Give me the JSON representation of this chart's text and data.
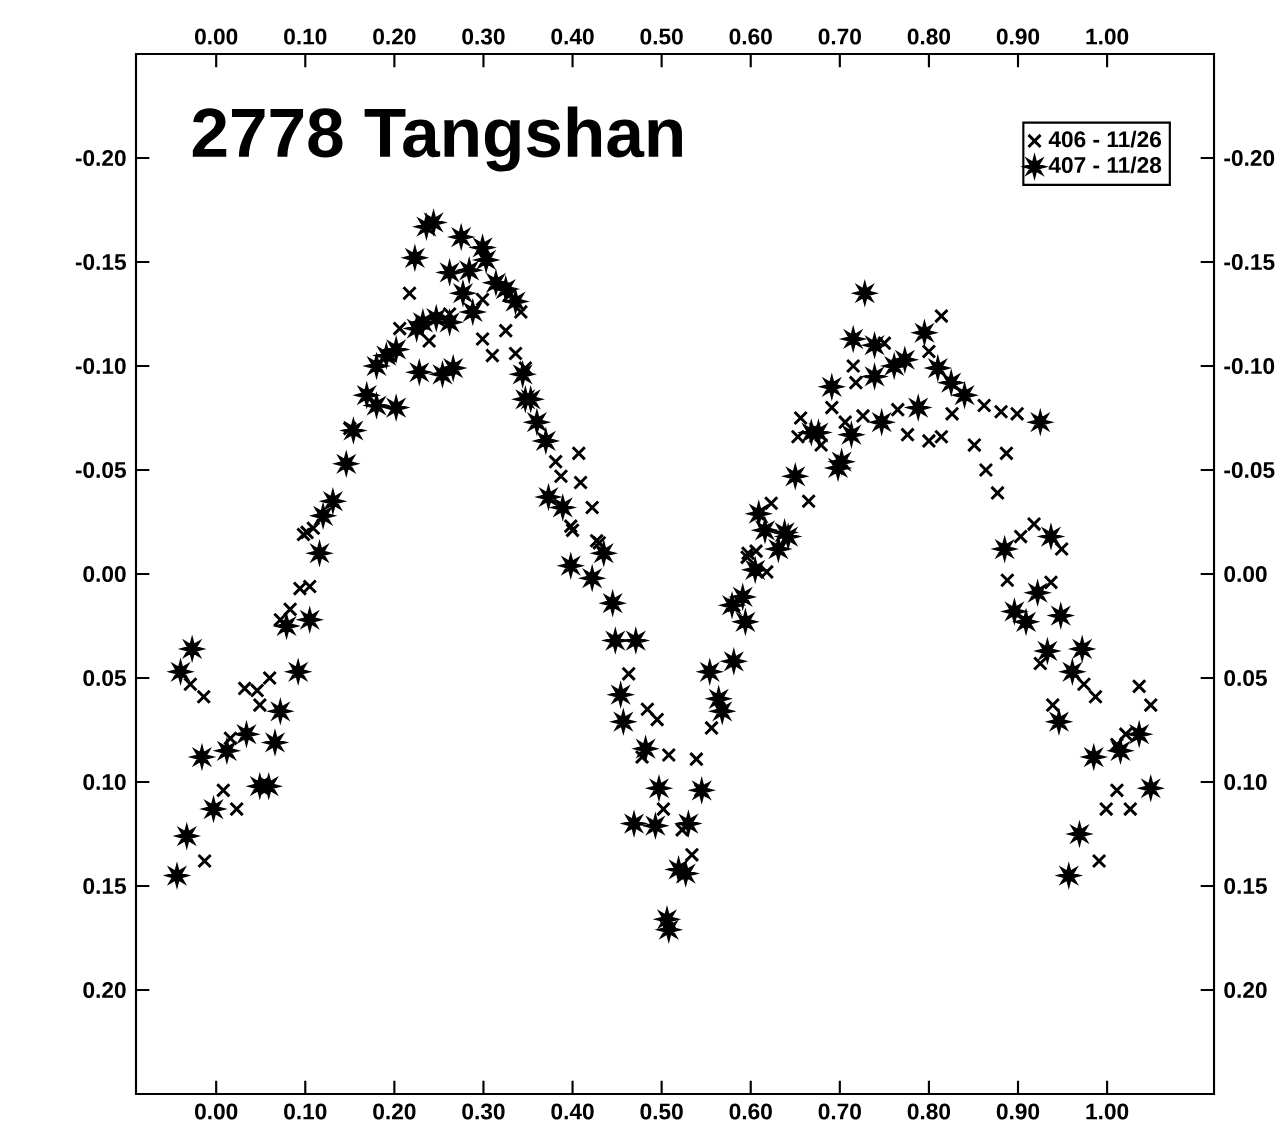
{
  "chart_data": {
    "type": "scatter",
    "title": "2778 Tangshan",
    "xlim": [
      -0.09,
      1.12
    ],
    "ylim": [
      0.25,
      -0.25
    ],
    "xticks": [
      {
        "value": 0,
        "label": "0.00"
      },
      {
        "value": 0.1,
        "label": "0.10"
      },
      {
        "value": 0.2,
        "label": "0.20"
      },
      {
        "value": 0.3,
        "label": "0.30"
      },
      {
        "value": 0.4,
        "label": "0.40"
      },
      {
        "value": 0.5,
        "label": "0.50"
      },
      {
        "value": 0.6,
        "label": "0.60"
      },
      {
        "value": 0.7,
        "label": "0.70"
      },
      {
        "value": 0.8,
        "label": "0.80"
      },
      {
        "value": 0.9,
        "label": "0.90"
      },
      {
        "value": 1.0,
        "label": "1.00"
      }
    ],
    "yticks": [
      {
        "value": -0.2,
        "label": "-0.20"
      },
      {
        "value": -0.15,
        "label": "-0.15"
      },
      {
        "value": -0.1,
        "label": "-0.10"
      },
      {
        "value": -0.05,
        "label": "-0.05"
      },
      {
        "value": 0,
        "label": "0.00"
      },
      {
        "value": 0.05,
        "label": "0.05"
      },
      {
        "value": 0.1,
        "label": "0.10"
      },
      {
        "value": 0.15,
        "label": "0.15"
      },
      {
        "value": 0.2,
        "label": "0.20"
      }
    ],
    "x2lim": [
      -0.09,
      1.12
    ],
    "y2lim": [
      0.25,
      -0.25
    ],
    "x2ticks": [
      {
        "value": 0,
        "label": "0.00"
      },
      {
        "value": 0.1,
        "label": "0.10"
      },
      {
        "value": 0.2,
        "label": "0.20"
      },
      {
        "value": 0.3,
        "label": "0.30"
      },
      {
        "value": 0.4,
        "label": "0.40"
      },
      {
        "value": 0.5,
        "label": "0.50"
      },
      {
        "value": 0.6,
        "label": "0.60"
      },
      {
        "value": 0.7,
        "label": "0.70"
      },
      {
        "value": 0.8,
        "label": "0.80"
      },
      {
        "value": 0.9,
        "label": "0.90"
      },
      {
        "value": 1.0,
        "label": "1.00"
      }
    ],
    "y2ticks": [
      {
        "value": -0.2,
        "label": "-0.20"
      },
      {
        "value": -0.15,
        "label": "-0.15"
      },
      {
        "value": -0.1,
        "label": "-0.10"
      },
      {
        "value": -0.05,
        "label": "-0.05"
      },
      {
        "value": 0,
        "label": "0.00"
      },
      {
        "value": 0.05,
        "label": "0.05"
      },
      {
        "value": 0.1,
        "label": "0.10"
      },
      {
        "value": 0.15,
        "label": "0.15"
      },
      {
        "value": 0.2,
        "label": "0.20"
      }
    ],
    "legend": "top right",
    "grid": false,
    "series": [
      {
        "name": "406 - 11/26",
        "color": "#000000",
        "marker": "cross",
        "x": [
          -0.029,
          -0.014,
          -0.013,
          0.008,
          0.023,
          0.016,
          0.032,
          0.046,
          0.049,
          0.06,
          0.072,
          0.083,
          0.094,
          0.105,
          0.098,
          0.109,
          0.102,
          0.15,
          0.195,
          0.206,
          0.217,
          0.239,
          0.262,
          0.299,
          0.329,
          0.342,
          0.325,
          0.299,
          0.31,
          0.336,
          0.347,
          0.381,
          0.407,
          0.387,
          0.409,
          0.422,
          0.398,
          0.43,
          0.4,
          0.427,
          0.463,
          0.484,
          0.495,
          0.478,
          0.508,
          0.502,
          0.539,
          0.523,
          0.534,
          0.556,
          0.544,
          0.581,
          0.596,
          0.606,
          0.618,
          0.597,
          0.623,
          0.665,
          0.653,
          0.656,
          0.679,
          0.691,
          0.706,
          0.718,
          0.715,
          0.726,
          0.75,
          0.765,
          0.776,
          0.8,
          0.814,
          0.8,
          0.814,
          0.826,
          0.851,
          0.862,
          0.881,
          0.899,
          0.887,
          0.864,
          0.877,
          0.888,
          0.903,
          0.918,
          0.949,
          0.937,
          0.925,
          0.939,
          0.974,
          0.987,
          0.991,
          0.999,
          1.011,
          1.026,
          1.021,
          1.011,
          1.036,
          1.049
        ],
        "values": [
          0.053,
          0.059,
          0.138,
          0.104,
          0.113,
          0.079,
          0.055,
          0.056,
          0.063,
          0.05,
          0.022,
          0.017,
          0.007,
          0.006,
          -0.019,
          -0.022,
          -0.02,
          -0.07,
          -0.105,
          -0.118,
          -0.135,
          -0.112,
          -0.125,
          -0.132,
          -0.134,
          -0.126,
          -0.117,
          -0.113,
          -0.105,
          -0.106,
          -0.099,
          -0.054,
          -0.058,
          -0.047,
          -0.044,
          -0.032,
          -0.023,
          -0.015,
          -0.021,
          -0.016,
          0.048,
          0.065,
          0.07,
          0.088,
          0.087,
          0.113,
          0.089,
          0.123,
          0.135,
          0.074,
          0.104,
          0.015,
          -0.008,
          -0.011,
          -0.001,
          -0.01,
          -0.034,
          -0.035,
          -0.066,
          -0.075,
          -0.062,
          -0.08,
          -0.073,
          -0.092,
          -0.1,
          -0.076,
          -0.111,
          -0.079,
          -0.067,
          -0.107,
          -0.124,
          -0.064,
          -0.066,
          -0.077,
          -0.062,
          -0.081,
          -0.078,
          -0.077,
          -0.058,
          -0.05,
          -0.039,
          0.003,
          -0.018,
          -0.024,
          -0.012,
          0.004,
          0.043,
          0.063,
          0.053,
          0.059,
          0.138,
          0.113,
          0.104,
          0.113,
          0.077,
          0.082,
          0.054,
          0.063
        ]
      },
      {
        "name": "407 - 11/28",
        "color": "#000000",
        "marker": "star",
        "x": [
          -0.044,
          -0.033,
          -0.027,
          -0.04,
          -0.016,
          -0.003,
          0.012,
          0.034,
          0.049,
          0.059,
          0.066,
          0.072,
          0.079,
          0.092,
          0.105,
          0.116,
          0.12,
          0.131,
          0.146,
          0.154,
          0.169,
          0.18,
          0.202,
          0.18,
          0.191,
          0.202,
          0.223,
          0.225,
          0.232,
          0.228,
          0.236,
          0.244,
          0.247,
          0.254,
          0.262,
          0.262,
          0.266,
          0.275,
          0.277,
          0.284,
          0.288,
          0.299,
          0.303,
          0.314,
          0.325,
          0.336,
          0.344,
          0.347,
          0.353,
          0.36,
          0.37,
          0.373,
          0.389,
          0.398,
          0.422,
          0.435,
          0.445,
          0.448,
          0.471,
          0.454,
          0.457,
          0.482,
          0.497,
          0.469,
          0.493,
          0.506,
          0.508,
          0.519,
          0.53,
          0.527,
          0.545,
          0.554,
          0.564,
          0.568,
          0.581,
          0.579,
          0.591,
          0.594,
          0.605,
          0.609,
          0.616,
          0.631,
          0.638,
          0.642,
          0.65,
          0.668,
          0.676,
          0.691,
          0.698,
          0.702,
          0.713,
          0.715,
          0.728,
          0.739,
          0.739,
          0.747,
          0.761,
          0.773,
          0.788,
          0.795,
          0.81,
          0.825,
          0.84,
          0.925,
          0.885,
          0.896,
          0.909,
          0.922,
          0.937,
          0.948,
          0.933,
          0.946,
          0.957,
          0.969,
          0.972,
          0.961,
          0.985,
          1.015,
          1.036,
          1.049
        ],
        "values": [
          0.145,
          0.126,
          0.036,
          0.047,
          0.088,
          0.113,
          0.085,
          0.077,
          0.102,
          0.102,
          0.081,
          0.066,
          0.025,
          0.047,
          0.022,
          -0.01,
          -0.028,
          -0.035,
          -0.053,
          -0.069,
          -0.086,
          -0.081,
          -0.08,
          -0.1,
          -0.105,
          -0.108,
          -0.152,
          -0.118,
          -0.121,
          -0.097,
          -0.167,
          -0.169,
          -0.123,
          -0.096,
          -0.121,
          -0.145,
          -0.099,
          -0.162,
          -0.135,
          -0.146,
          -0.126,
          -0.157,
          -0.151,
          -0.14,
          -0.137,
          -0.131,
          -0.096,
          -0.084,
          -0.084,
          -0.073,
          -0.064,
          -0.037,
          -0.032,
          -0.004,
          0.002,
          -0.01,
          0.014,
          0.032,
          0.032,
          0.058,
          0.071,
          0.084,
          0.103,
          0.12,
          0.121,
          0.166,
          0.171,
          0.142,
          0.12,
          0.144,
          0.104,
          0.047,
          0.06,
          0.066,
          0.042,
          0.015,
          0.011,
          0.023,
          -0.002,
          -0.029,
          -0.021,
          -0.012,
          -0.02,
          -0.018,
          -0.047,
          -0.068,
          -0.068,
          -0.09,
          -0.051,
          -0.054,
          -0.067,
          -0.113,
          -0.135,
          -0.11,
          -0.095,
          -0.073,
          -0.1,
          -0.103,
          -0.08,
          -0.116,
          -0.099,
          -0.092,
          -0.086,
          -0.073,
          -0.012,
          0.018,
          0.023,
          0.009,
          -0.018,
          0.02,
          0.037,
          0.071,
          0.145,
          0.125,
          0.036,
          0.047,
          0.088,
          0.085,
          0.077,
          0.103
        ]
      }
    ]
  }
}
